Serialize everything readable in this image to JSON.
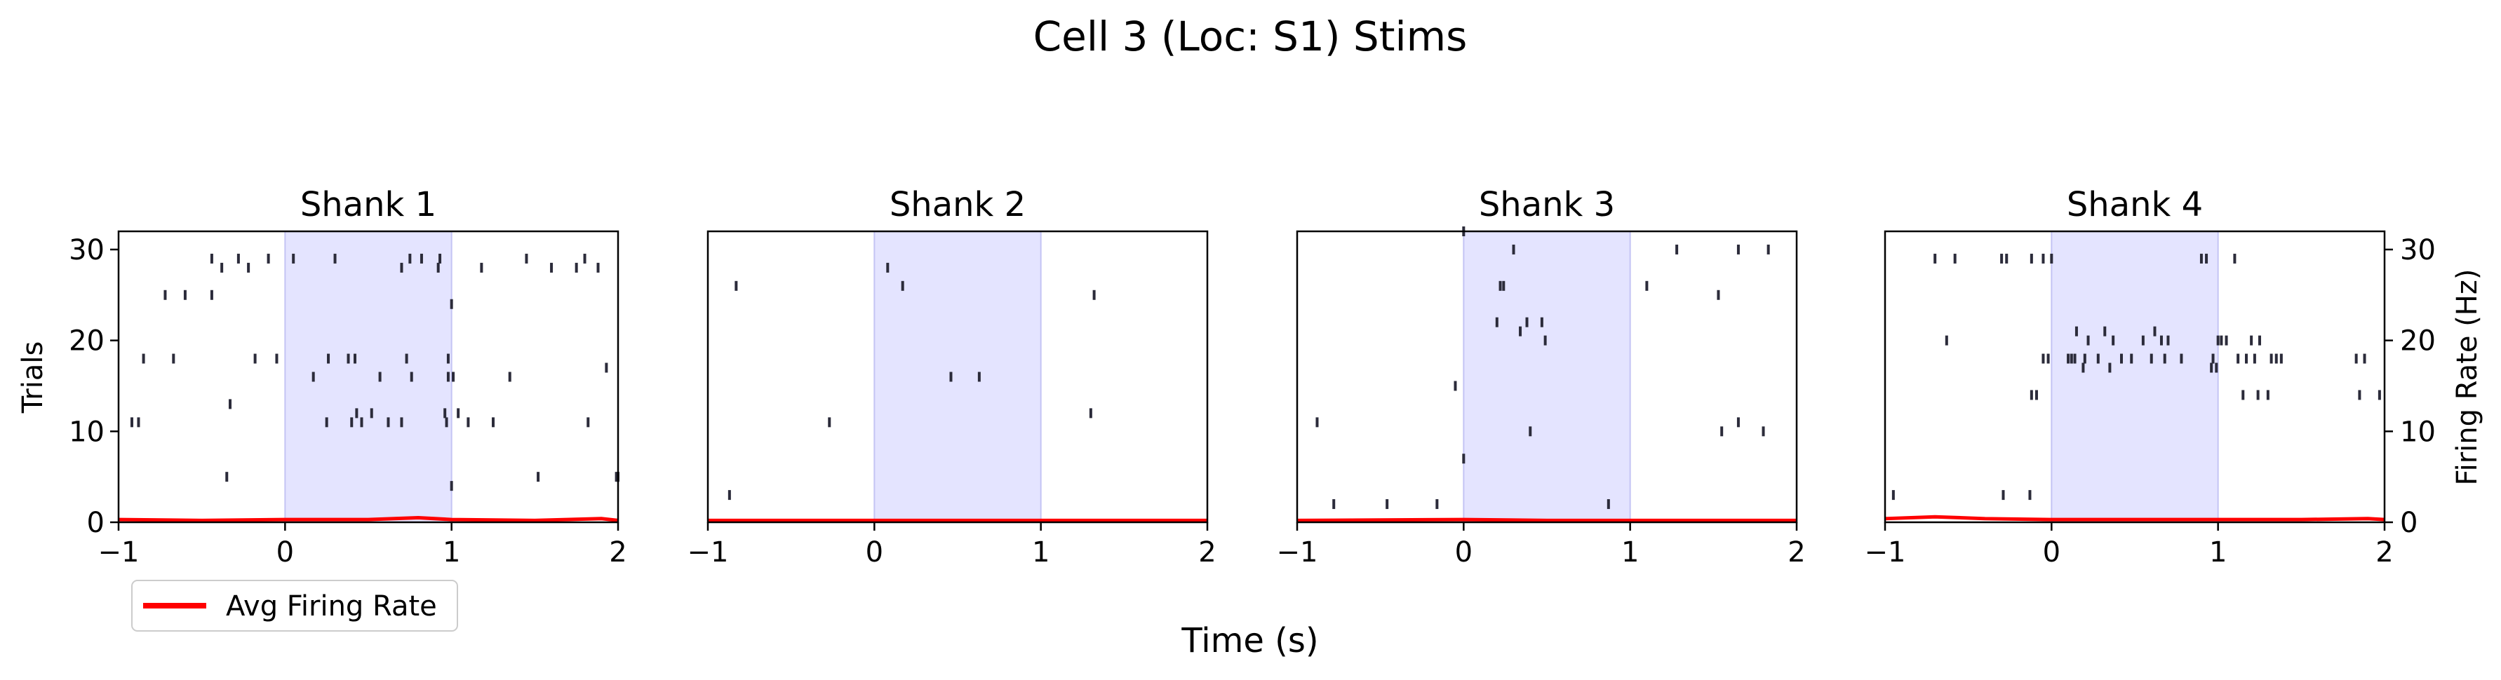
{
  "figure": {
    "title": "Cell 3 (Loc: S1) Stims",
    "xlabel": "Time (s)",
    "ylabel_left": "Trials",
    "ylabel_right": "Firing Rate (Hz)",
    "legend": {
      "label": "Avg Firing Rate",
      "color": "#ff0000",
      "placement": "lower-left (below first panel)"
    }
  },
  "colors": {
    "spike": "#2b2b3a",
    "stim_shade": "#e4e4ff",
    "stim_edge": "#c4c4f4",
    "rate_line": "#ff0000"
  },
  "chart_data": [
    {
      "type": "scatter",
      "title": "Shank 1",
      "xlim": [
        -1,
        2
      ],
      "ylim": [
        0,
        32
      ],
      "xticks": [
        -1,
        0,
        1,
        2
      ],
      "yticks": [
        0,
        10,
        20,
        30
      ],
      "stim_window": [
        0,
        1
      ],
      "spikes": [
        [
          -0.44,
          29
        ],
        [
          -0.28,
          29
        ],
        [
          -0.1,
          29
        ],
        [
          0.05,
          29
        ],
        [
          0.3,
          29
        ],
        [
          0.75,
          29
        ],
        [
          0.82,
          29
        ],
        [
          0.93,
          29
        ],
        [
          1.45,
          29
        ],
        [
          1.8,
          29
        ],
        [
          -0.38,
          28
        ],
        [
          -0.22,
          28
        ],
        [
          0.7,
          28
        ],
        [
          0.92,
          28
        ],
        [
          1.18,
          28
        ],
        [
          1.6,
          28
        ],
        [
          1.75,
          28
        ],
        [
          1.88,
          28
        ],
        [
          -0.72,
          25
        ],
        [
          -0.6,
          25
        ],
        [
          -0.44,
          25
        ],
        [
          1.0,
          24
        ],
        [
          -0.85,
          18
        ],
        [
          -0.67,
          18
        ],
        [
          -0.18,
          18
        ],
        [
          -0.05,
          18
        ],
        [
          0.26,
          18
        ],
        [
          0.38,
          18
        ],
        [
          0.42,
          18
        ],
        [
          0.73,
          18
        ],
        [
          0.98,
          18
        ],
        [
          1.93,
          17
        ],
        [
          0.17,
          16
        ],
        [
          0.57,
          16
        ],
        [
          0.76,
          16
        ],
        [
          0.98,
          16
        ],
        [
          1.01,
          16
        ],
        [
          1.35,
          16
        ],
        [
          -0.33,
          13
        ],
        [
          0.43,
          12
        ],
        [
          0.52,
          12
        ],
        [
          0.96,
          12
        ],
        [
          1.04,
          12
        ],
        [
          -0.88,
          11
        ],
        [
          -0.92,
          11
        ],
        [
          0.25,
          11
        ],
        [
          0.4,
          11
        ],
        [
          0.46,
          11
        ],
        [
          0.62,
          11
        ],
        [
          0.7,
          11
        ],
        [
          0.97,
          11
        ],
        [
          1.1,
          11
        ],
        [
          1.25,
          11
        ],
        [
          1.82,
          11
        ],
        [
          -0.35,
          5
        ],
        [
          1.0,
          4
        ],
        [
          1.52,
          5
        ],
        [
          1.99,
          5
        ],
        [
          2.0,
          5
        ]
      ],
      "rate": {
        "x": [
          -1,
          -0.5,
          0,
          0.5,
          0.8,
          1,
          1.5,
          1.9,
          2
        ],
        "y": [
          0.3,
          0.2,
          0.3,
          0.3,
          0.5,
          0.3,
          0.2,
          0.4,
          0.2
        ]
      }
    },
    {
      "type": "scatter",
      "title": "Shank 2",
      "xlim": [
        -1,
        2
      ],
      "ylim": [
        0,
        32
      ],
      "xticks": [
        -1,
        0,
        1,
        2
      ],
      "yticks": [],
      "stim_window": [
        0,
        1
      ],
      "spikes": [
        [
          0.08,
          28
        ],
        [
          0.17,
          26
        ],
        [
          -0.83,
          26
        ],
        [
          1.32,
          25
        ],
        [
          0.46,
          16
        ],
        [
          0.63,
          16
        ],
        [
          -0.27,
          11
        ],
        [
          1.3,
          12
        ],
        [
          -0.87,
          3
        ]
      ],
      "rate": {
        "x": [
          -1,
          0,
          1,
          2
        ],
        "y": [
          0.2,
          0.2,
          0.2,
          0.2
        ]
      }
    },
    {
      "type": "scatter",
      "title": "Shank 3",
      "xlim": [
        -1,
        2
      ],
      "ylim": [
        0,
        32
      ],
      "xticks": [
        -1,
        0,
        1,
        2
      ],
      "yticks": [],
      "stim_window": [
        0,
        1
      ],
      "spikes": [
        [
          0.0,
          32
        ],
        [
          0.3,
          30
        ],
        [
          1.28,
          30
        ],
        [
          1.65,
          30
        ],
        [
          1.83,
          30
        ],
        [
          0.22,
          26
        ],
        [
          0.24,
          26
        ],
        [
          1.1,
          26
        ],
        [
          1.53,
          25
        ],
        [
          0.2,
          22
        ],
        [
          0.38,
          22
        ],
        [
          0.47,
          22
        ],
        [
          0.34,
          21
        ],
        [
          0.49,
          20
        ],
        [
          -0.05,
          15
        ],
        [
          -0.88,
          11
        ],
        [
          0.4,
          10
        ],
        [
          1.55,
          10
        ],
        [
          1.65,
          11
        ],
        [
          1.8,
          10
        ],
        [
          0.0,
          7
        ],
        [
          -0.78,
          2
        ],
        [
          -0.46,
          2
        ],
        [
          -0.16,
          2
        ],
        [
          0.87,
          2
        ]
      ],
      "rate": {
        "x": [
          -1,
          0,
          0.5,
          1,
          2
        ],
        "y": [
          0.2,
          0.3,
          0.2,
          0.2,
          0.2
        ]
      }
    },
    {
      "type": "scatter",
      "title": "Shank 4",
      "xlim": [
        -1,
        2
      ],
      "ylim": [
        0,
        32
      ],
      "xticks": [
        -1,
        0,
        1,
        2
      ],
      "yticks": [
        0,
        10,
        20,
        30
      ],
      "yaxis_side": "right",
      "stim_window": [
        0,
        1
      ],
      "spikes": [
        [
          -0.7,
          29
        ],
        [
          -0.58,
          29
        ],
        [
          -0.3,
          29
        ],
        [
          -0.27,
          29
        ],
        [
          -0.12,
          29
        ],
        [
          -0.05,
          29
        ],
        [
          0.0,
          29
        ],
        [
          0.9,
          29
        ],
        [
          0.93,
          29
        ],
        [
          1.1,
          29
        ],
        [
          -0.63,
          20
        ],
        [
          0.15,
          21
        ],
        [
          0.32,
          21
        ],
        [
          0.62,
          21
        ],
        [
          0.22,
          20
        ],
        [
          0.37,
          20
        ],
        [
          0.55,
          20
        ],
        [
          0.66,
          20
        ],
        [
          0.7,
          20
        ],
        [
          1.0,
          20
        ],
        [
          1.02,
          20
        ],
        [
          1.05,
          20
        ],
        [
          1.2,
          20
        ],
        [
          1.25,
          20
        ],
        [
          -0.05,
          18
        ],
        [
          -0.02,
          18
        ],
        [
          0.1,
          18
        ],
        [
          0.12,
          18
        ],
        [
          0.14,
          18
        ],
        [
          0.2,
          18
        ],
        [
          0.28,
          18
        ],
        [
          0.42,
          18
        ],
        [
          0.48,
          18
        ],
        [
          0.6,
          18
        ],
        [
          0.68,
          18
        ],
        [
          0.78,
          18
        ],
        [
          0.97,
          18
        ],
        [
          1.12,
          18
        ],
        [
          1.17,
          18
        ],
        [
          1.22,
          18
        ],
        [
          1.32,
          18
        ],
        [
          1.35,
          18
        ],
        [
          1.38,
          18
        ],
        [
          1.83,
          18
        ],
        [
          1.88,
          18
        ],
        [
          0.19,
          17
        ],
        [
          0.35,
          17
        ],
        [
          0.96,
          17
        ],
        [
          0.99,
          17
        ],
        [
          -0.12,
          14
        ],
        [
          -0.09,
          14
        ],
        [
          1.15,
          14
        ],
        [
          1.24,
          14
        ],
        [
          1.3,
          14
        ],
        [
          1.85,
          14
        ],
        [
          1.97,
          14
        ],
        [
          -0.95,
          3
        ],
        [
          -0.29,
          3
        ],
        [
          -0.13,
          3
        ]
      ],
      "rate": {
        "x": [
          -1,
          -0.7,
          -0.4,
          0,
          0.5,
          1,
          1.5,
          1.9,
          2
        ],
        "y": [
          0.4,
          0.6,
          0.4,
          0.3,
          0.3,
          0.3,
          0.3,
          0.4,
          0.3
        ]
      }
    }
  ]
}
